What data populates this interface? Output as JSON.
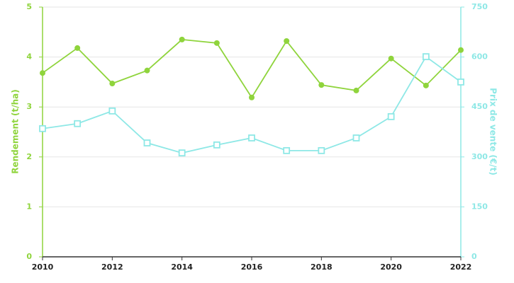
{
  "chart_data": {
    "type": "line",
    "x": [
      2010,
      2011,
      2012,
      2013,
      2014,
      2015,
      2016,
      2017,
      2018,
      2019,
      2020,
      2021,
      2022
    ],
    "xlim": [
      2010,
      2022
    ],
    "xticks": [
      2010,
      2012,
      2014,
      2016,
      2018,
      2020,
      2022
    ],
    "ylabel": "Rendement (t/ha)",
    "y2label": "Prix de vente (€/t)",
    "ylim": [
      0,
      5
    ],
    "yticks": [
      0,
      1,
      2,
      3,
      4,
      5
    ],
    "y2lim": [
      0,
      750
    ],
    "y2ticks": [
      0,
      150,
      300,
      450,
      600,
      750
    ],
    "grid": true,
    "series": [
      {
        "name": "Rendement",
        "color": "#8fd43c",
        "marker": "circle",
        "values": [
          3.68,
          4.18,
          3.47,
          3.73,
          4.35,
          4.28,
          3.19,
          4.32,
          3.44,
          3.33,
          3.97,
          3.43,
          4.14
        ]
      },
      {
        "name": "Prix de vente",
        "color": "#8ee8e6",
        "marker": "square",
        "axis": "y2",
        "values": [
          385,
          400,
          438,
          342,
          312,
          336,
          357,
          319,
          319,
          357,
          421,
          601,
          525
        ]
      }
    ]
  }
}
